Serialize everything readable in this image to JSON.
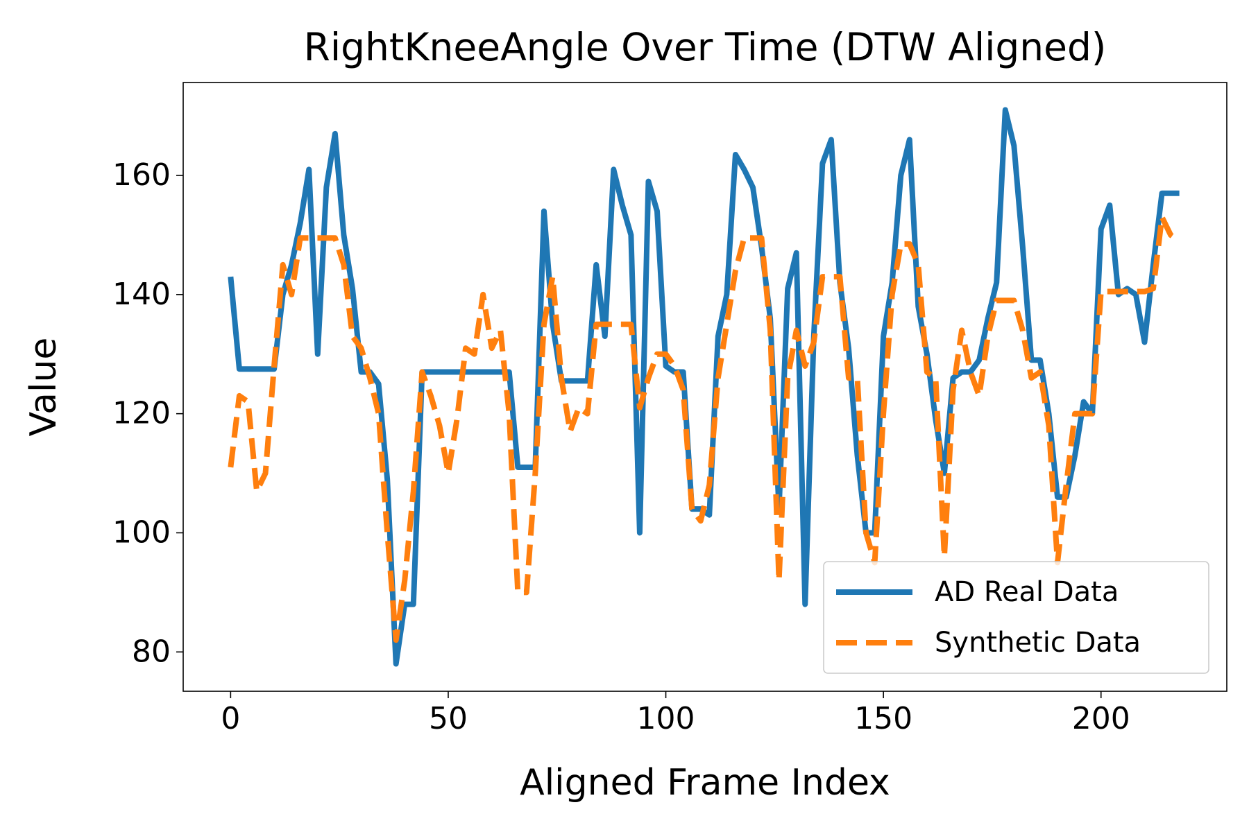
{
  "chart_data": {
    "type": "line",
    "title": "RightKneeAngle Over Time (DTW Aligned)",
    "xlabel": "Aligned Frame Index",
    "ylabel": "Value",
    "x": [
      0,
      2,
      4,
      6,
      8,
      10,
      12,
      14,
      16,
      18,
      20,
      22,
      24,
      26,
      28,
      30,
      32,
      34,
      36,
      38,
      40,
      42,
      44,
      46,
      48,
      50,
      52,
      54,
      56,
      58,
      60,
      62,
      64,
      66,
      68,
      70,
      72,
      74,
      76,
      78,
      80,
      82,
      84,
      86,
      88,
      90,
      92,
      94,
      96,
      98,
      100,
      102,
      104,
      106,
      108,
      110,
      112,
      114,
      116,
      118,
      120,
      122,
      124,
      126,
      128,
      130,
      132,
      134,
      136,
      138,
      140,
      142,
      144,
      146,
      148,
      150,
      152,
      154,
      156,
      158,
      160,
      162,
      164,
      166,
      168,
      170,
      172,
      174,
      176,
      178,
      180,
      182,
      184,
      186,
      188,
      190,
      192,
      194,
      196,
      198,
      200,
      202,
      204,
      206,
      208,
      210,
      212,
      214,
      216,
      218
    ],
    "series": [
      {
        "name": "AD Real Data",
        "color": "#1f77b4",
        "style": "solid",
        "values": [
          143,
          127.5,
          127.5,
          127.5,
          127.5,
          127.5,
          140,
          145,
          152,
          161,
          130,
          158,
          167,
          150,
          141,
          127,
          127,
          125,
          109,
          78,
          88,
          88,
          127,
          127,
          127,
          127,
          127,
          127,
          127,
          127,
          127,
          127,
          127,
          111,
          111,
          111,
          154,
          135,
          125.5,
          125.5,
          125.5,
          125.5,
          145,
          133,
          161,
          155,
          150,
          100,
          159,
          154,
          128,
          127,
          127,
          104,
          104,
          103,
          133,
          140,
          163.5,
          161,
          158,
          148,
          136,
          104,
          141,
          147,
          88,
          133,
          162,
          166,
          142,
          131,
          113,
          100,
          100,
          133,
          142,
          160,
          166,
          138,
          130,
          119,
          110,
          126,
          127,
          127,
          129,
          136,
          142,
          171,
          165,
          148,
          129,
          129,
          120,
          106,
          106,
          113,
          122,
          120,
          151,
          155,
          140,
          141,
          140,
          132,
          145,
          157,
          157,
          157
        ]
      },
      {
        "name": "Synthetic Data",
        "color": "#ff7f0e",
        "style": "dashed",
        "values": [
          111,
          123,
          122,
          107,
          110,
          128,
          145,
          140,
          149.5,
          149.5,
          149.5,
          149.5,
          149.5,
          145,
          133,
          131,
          126,
          120,
          100,
          82,
          92,
          107,
          127,
          123,
          118,
          110,
          119,
          131,
          130,
          140,
          131,
          134,
          120,
          90,
          90,
          110,
          135,
          143,
          126,
          117,
          121,
          120,
          135,
          135,
          135,
          135,
          135,
          121,
          126,
          130,
          130,
          128,
          124,
          104,
          102,
          108,
          126,
          135,
          144,
          149.5,
          149.5,
          149.5,
          134,
          92,
          126,
          134,
          128,
          132,
          143,
          143,
          143,
          126,
          126,
          100,
          95,
          120,
          140,
          148.5,
          148.5,
          145,
          127,
          126,
          96,
          124,
          134,
          127,
          123,
          133,
          139,
          139,
          139,
          134,
          126,
          127,
          118,
          95,
          108,
          120,
          120,
          120,
          140.5,
          140.5,
          140.5,
          140.5,
          140.5,
          140.5,
          141,
          153,
          150,
          149
        ]
      }
    ],
    "xlim": [
      -10.9,
      228.9
    ],
    "ylim": [
      73.4,
      175.6
    ],
    "xticks": [
      0,
      50,
      100,
      150,
      200
    ],
    "yticks": [
      80,
      100,
      120,
      140,
      160
    ],
    "grid": false,
    "legend": "lower right"
  }
}
